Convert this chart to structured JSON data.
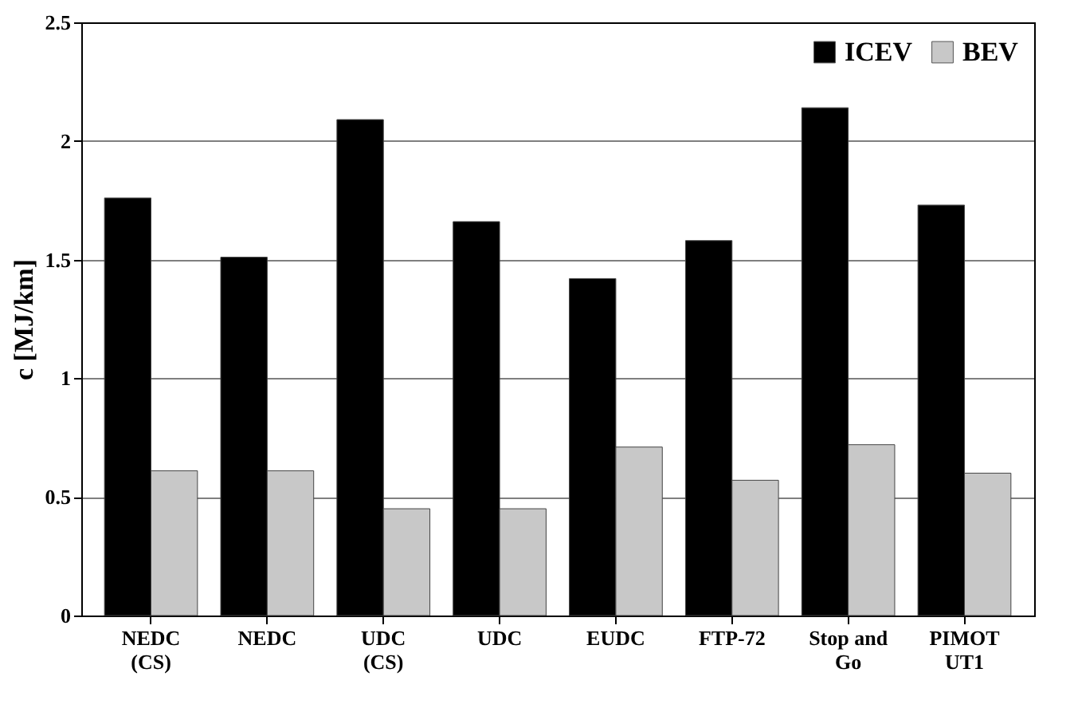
{
  "chart_data": {
    "type": "bar",
    "ylabel": "c [MJ/km]",
    "categories": [
      "NEDC (CS)",
      "NEDC",
      "UDC (CS)",
      "UDC",
      "EUDC",
      "FTP-72",
      "Stop and Go",
      "PIMOT UT1"
    ],
    "series": [
      {
        "name": "ICEV",
        "color": "#000000",
        "values": [
          1.76,
          1.51,
          2.09,
          1.66,
          1.42,
          1.58,
          2.14,
          1.73
        ]
      },
      {
        "name": "BEV",
        "color": "#c8c8c8",
        "values": [
          0.61,
          0.61,
          0.45,
          0.45,
          0.71,
          0.57,
          0.72,
          0.6
        ]
      }
    ],
    "ylim": [
      0,
      2.5
    ],
    "yticks": [
      0,
      0.5,
      1,
      1.5,
      2,
      2.5
    ],
    "grid": "y",
    "legend": "top right"
  }
}
